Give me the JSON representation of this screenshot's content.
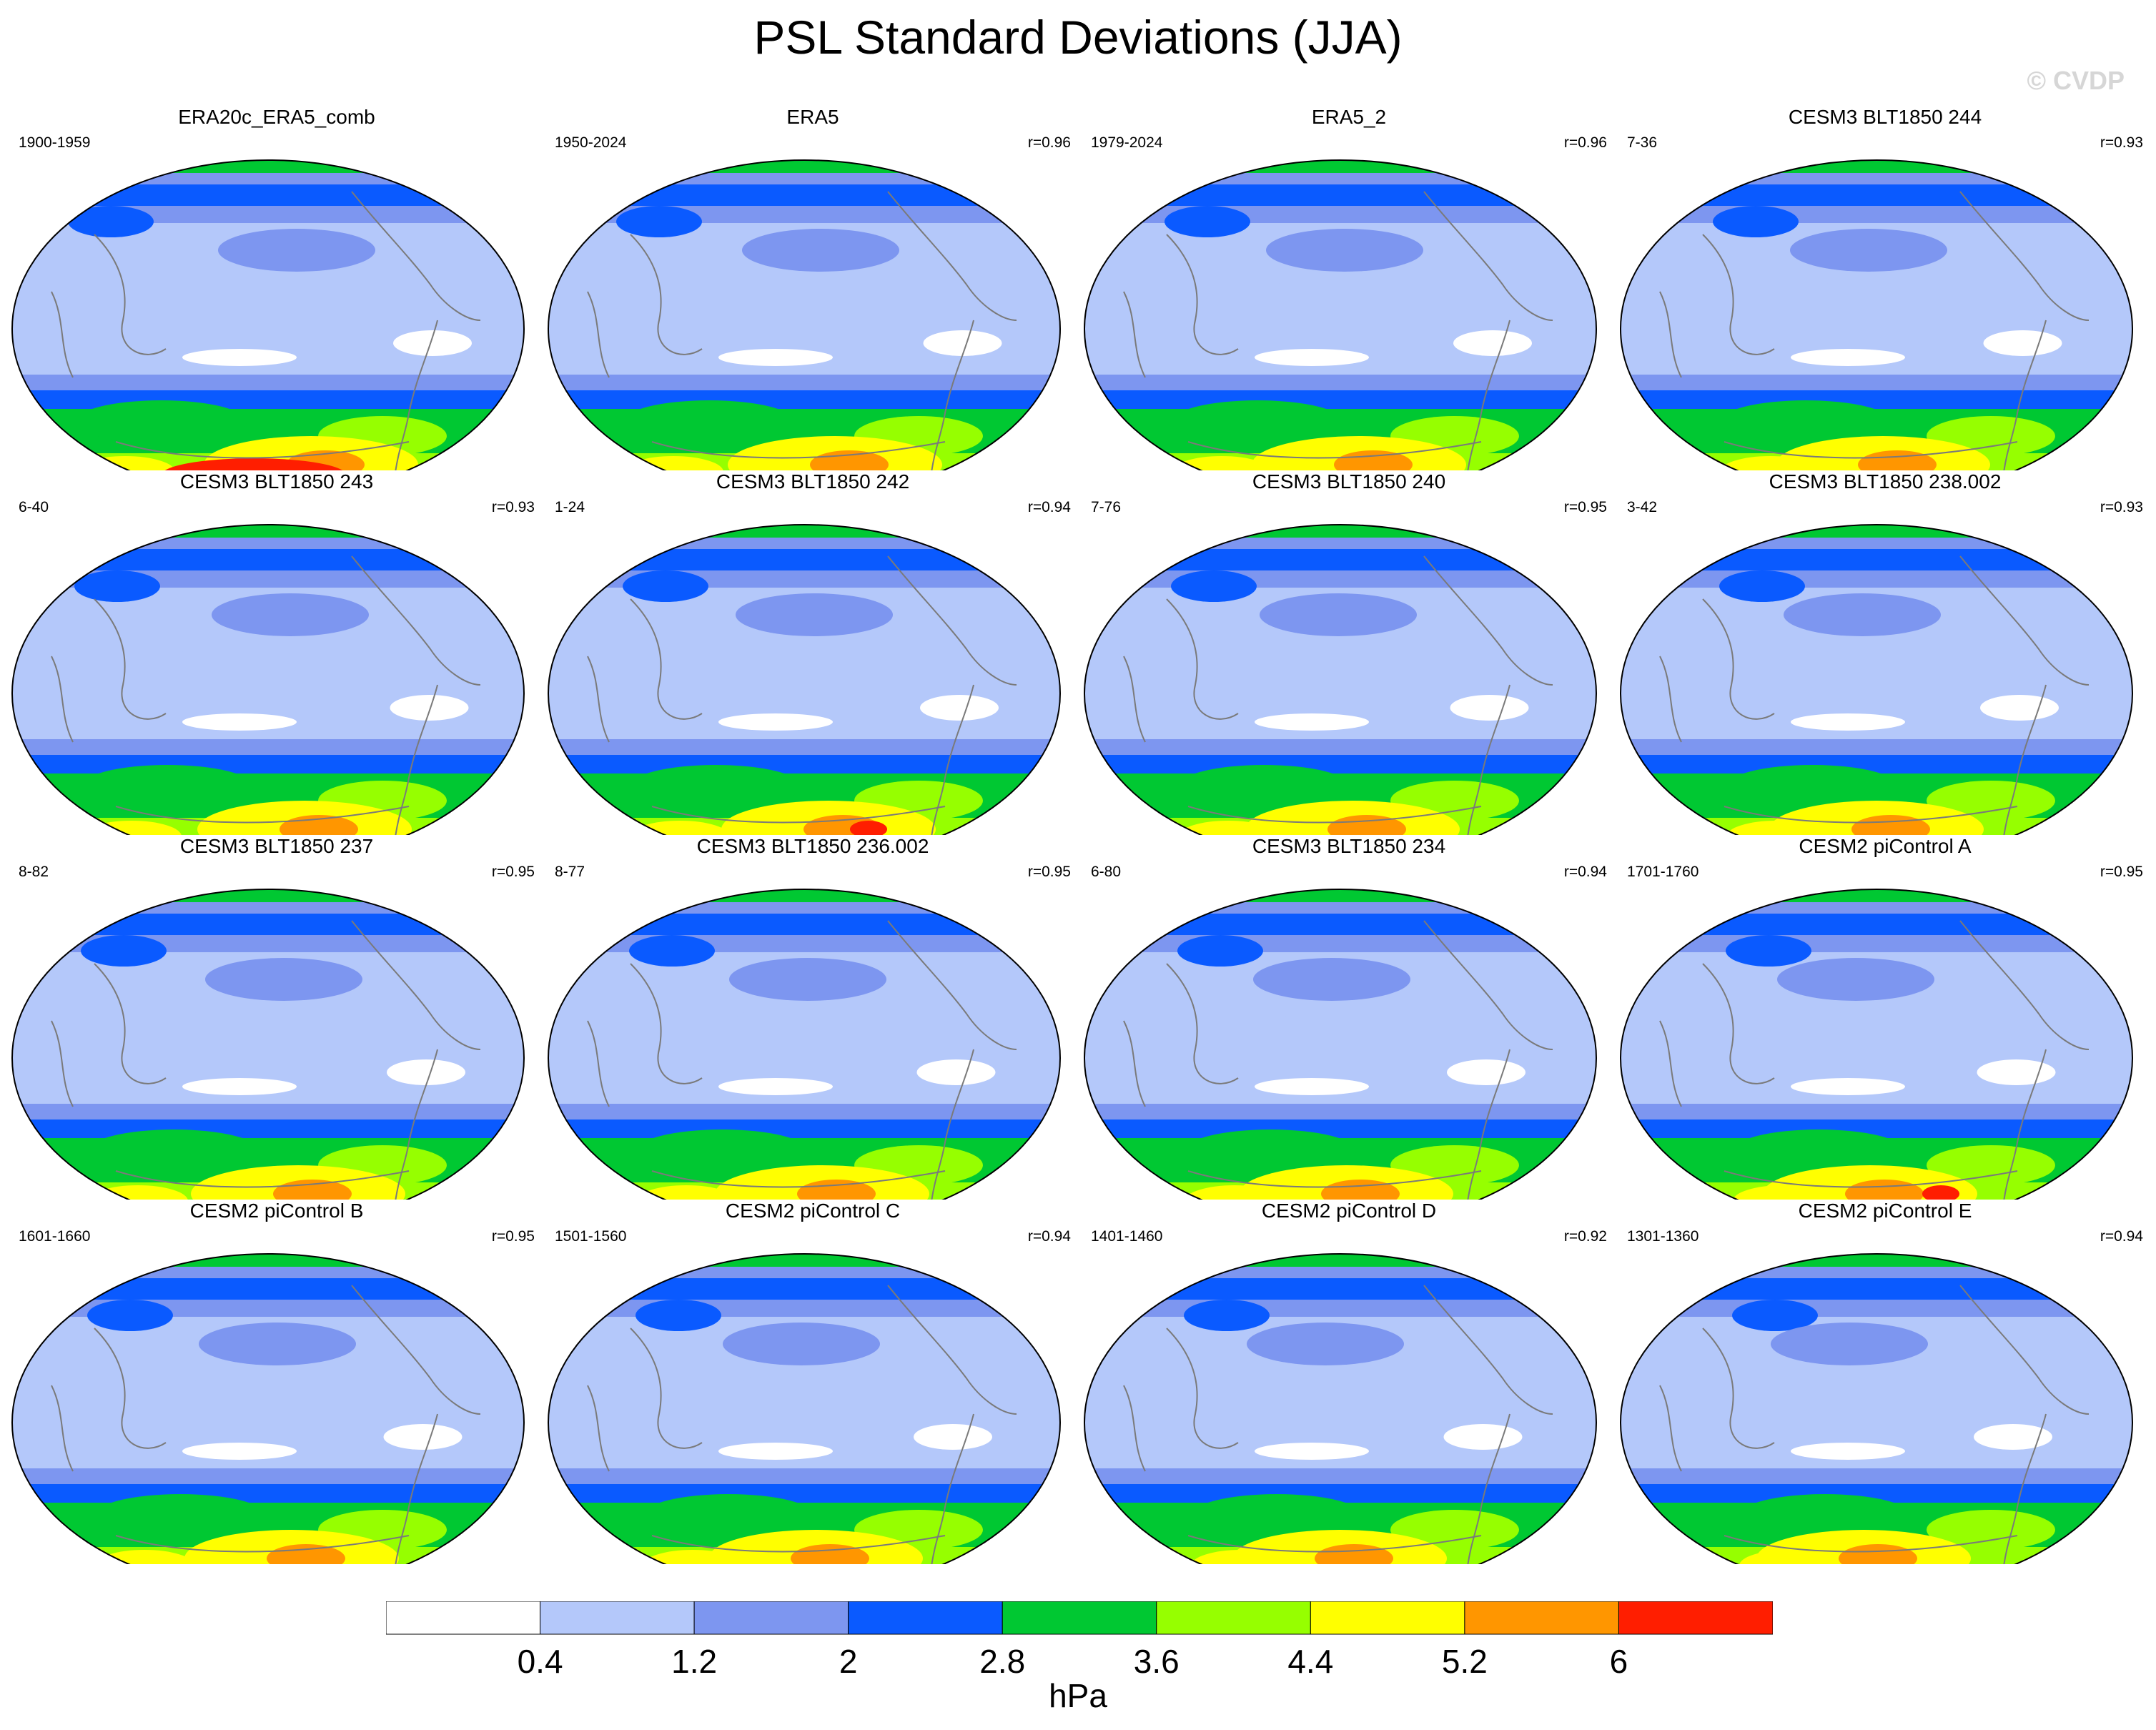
{
  "title": "PSL Standard Deviations (JJA)",
  "watermark": "© CVDP",
  "chart_data": {
    "type": "heatmap",
    "projection": "Robinson (Pacific-centered)",
    "variable": "PSL",
    "season": "JJA",
    "unit": "hPa",
    "colorbar": {
      "levels": [
        "0.4",
        "1.2",
        "2",
        "2.8",
        "3.6",
        "4.4",
        "5.2",
        "6"
      ],
      "colors": [
        "#ffffff",
        "#b4c8fa",
        "#7d96f0",
        "#0a5aff",
        "#00c832",
        "#96ff00",
        "#ffff00",
        "#ff9600",
        "#ff1e00"
      ]
    },
    "panels": [
      {
        "title": "ERA20c_ERA5_comb",
        "period": "1900-1959",
        "r": ""
      },
      {
        "title": "ERA5",
        "period": "1950-2024",
        "r": "r=0.96"
      },
      {
        "title": "ERA5_2",
        "period": "1979-2024",
        "r": "r=0.96"
      },
      {
        "title": "CESM3 BLT1850 244",
        "period": "7-36",
        "r": "r=0.93"
      },
      {
        "title": "CESM3 BLT1850 243",
        "period": "6-40",
        "r": "r=0.93"
      },
      {
        "title": "CESM3 BLT1850 242",
        "period": "1-24",
        "r": "r=0.94"
      },
      {
        "title": "CESM3 BLT1850 240",
        "period": "7-76",
        "r": "r=0.95"
      },
      {
        "title": "CESM3 BLT1850 238.002",
        "period": "3-42",
        "r": "r=0.93"
      },
      {
        "title": "CESM3 BLT1850 237",
        "period": "8-82",
        "r": "r=0.95"
      },
      {
        "title": "CESM3 BLT1850 236.002",
        "period": "8-77",
        "r": "r=0.95"
      },
      {
        "title": "CESM3 BLT1850 234",
        "period": "6-80",
        "r": "r=0.94"
      },
      {
        "title": "CESM2 piControl A",
        "period": "1701-1760",
        "r": "r=0.95"
      },
      {
        "title": "CESM2 piControl B",
        "period": "1601-1660",
        "r": "r=0.95"
      },
      {
        "title": "CESM2 piControl C",
        "period": "1501-1560",
        "r": "r=0.94"
      },
      {
        "title": "CESM2 piControl D",
        "period": "1401-1460",
        "r": "r=0.92"
      },
      {
        "title": "CESM2 piControl E",
        "period": "1301-1360",
        "r": "r=0.94"
      }
    ]
  }
}
